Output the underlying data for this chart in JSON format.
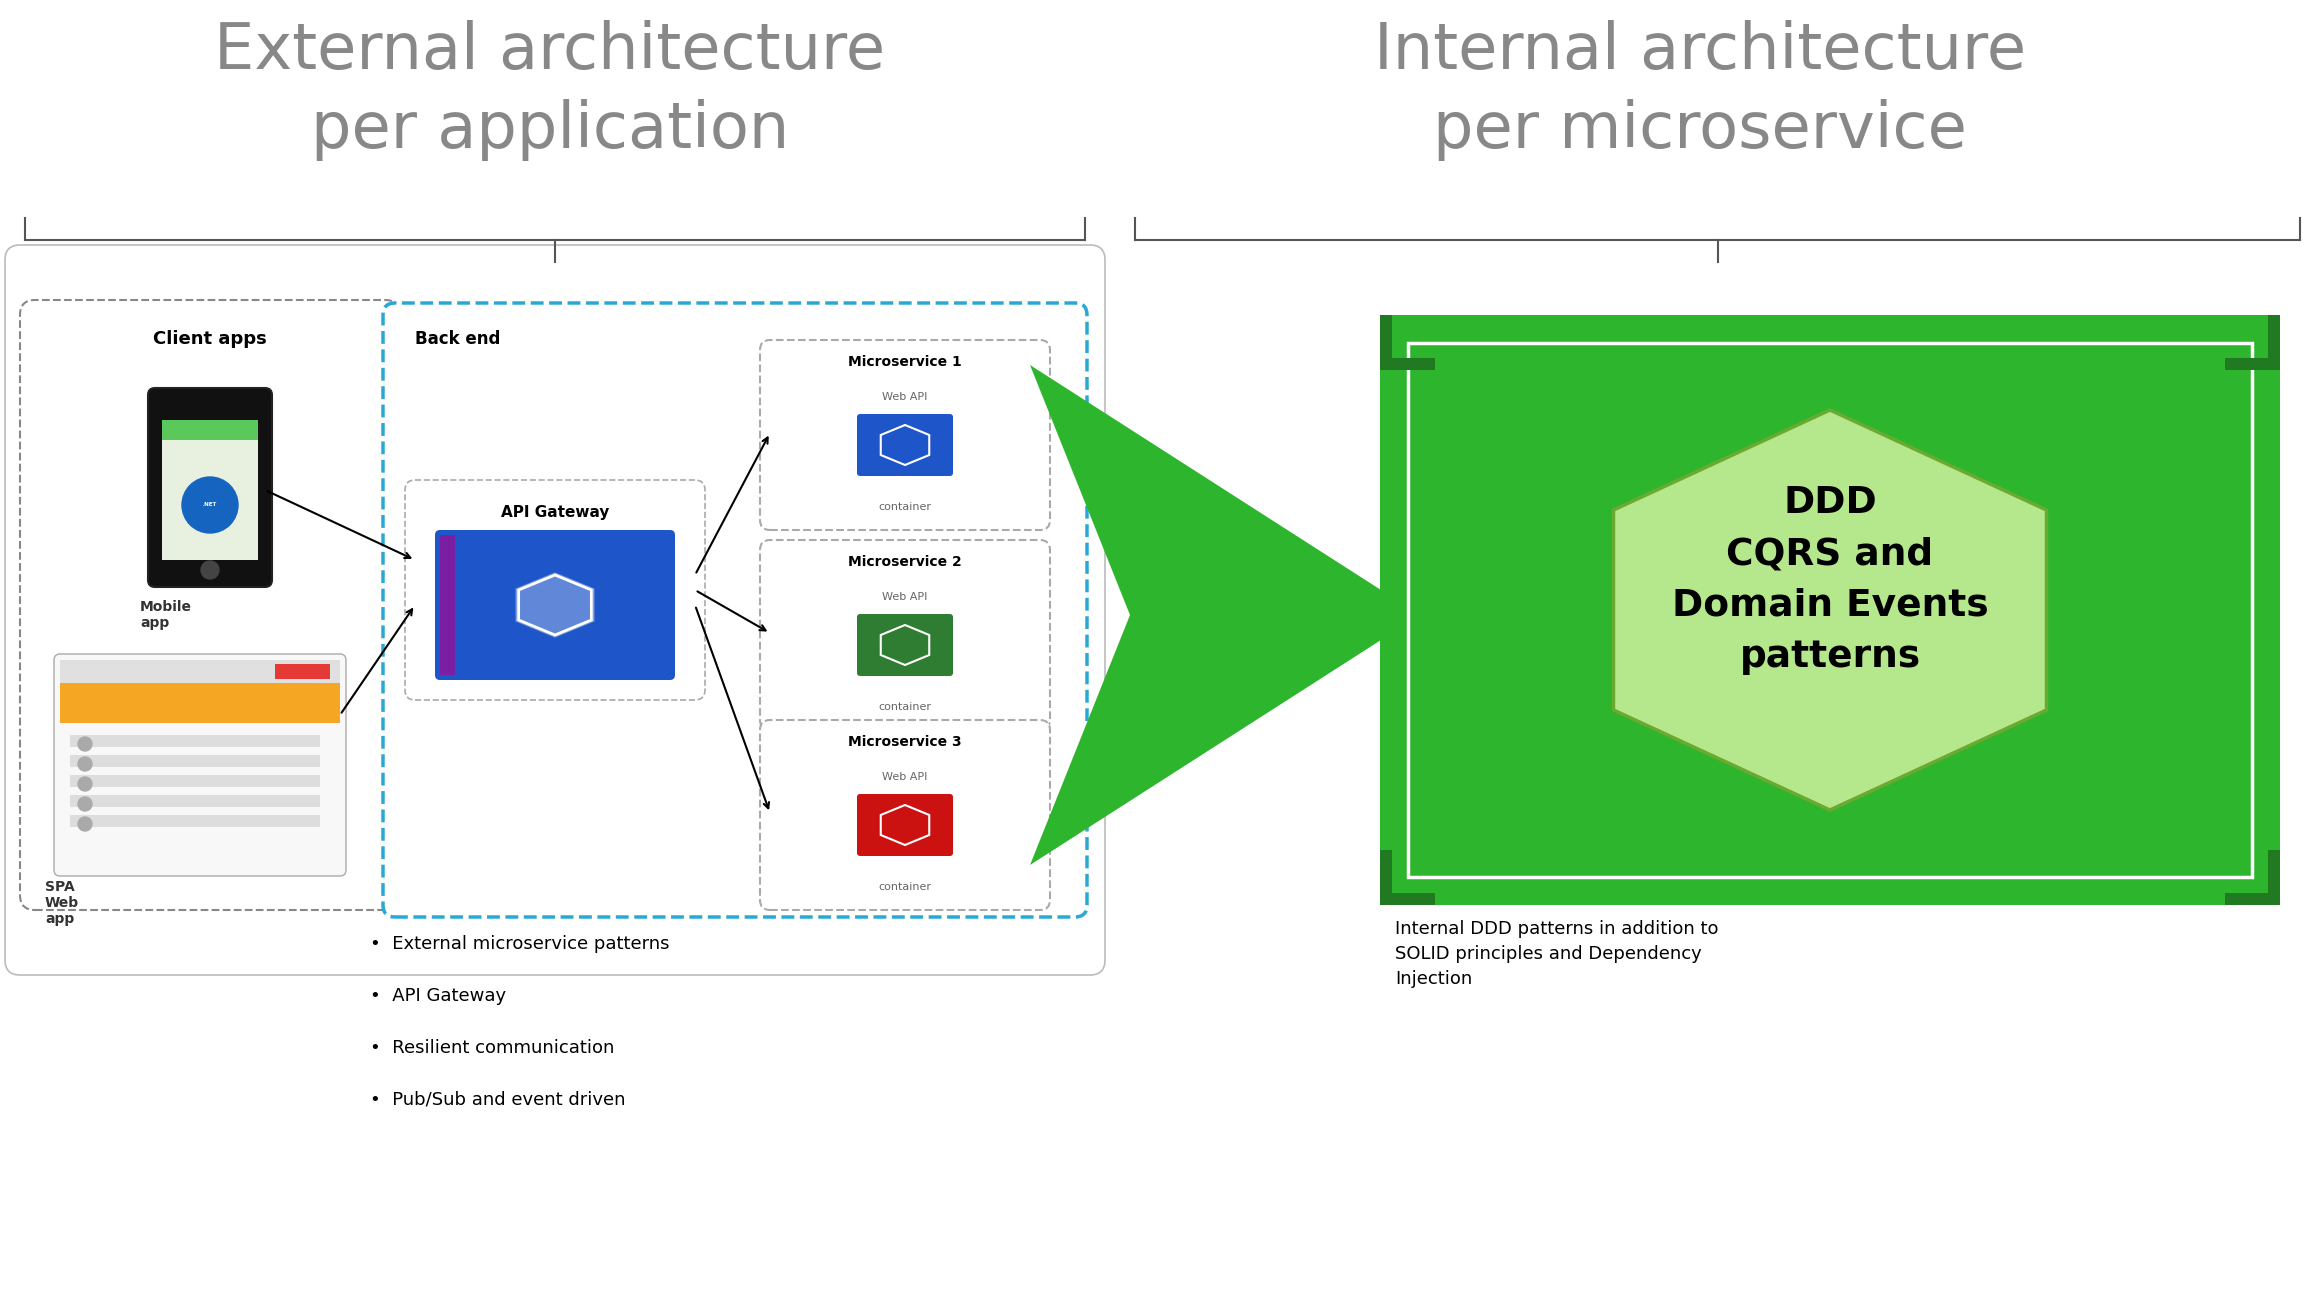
{
  "title_left": "External architecture\nper application",
  "title_right": "Internal architecture\nper microservice",
  "title_color": "#888888",
  "title_fontsize": 46,
  "bg_color": "#ffffff",
  "left_bullet_items": [
    "External microservice patterns",
    "API Gateway",
    "Resilient communication",
    "Pub/Sub and event driven"
  ],
  "right_text": "Internal DDD patterns in addition to\nSOLID principles and Dependency\nInjection",
  "ddd_text": "DDD\nCQRS and\nDomain Events\npatterns",
  "backend_label": "Back end",
  "client_label": "Client apps",
  "mobile_label": "Mobile\napp",
  "spa_label": "SPA\nWeb\napp",
  "gateway_label": "API Gateway",
  "ms1_label": "Microservice 1",
  "ms2_label": "Microservice 2",
  "ms3_label": "Microservice 3",
  "webapi_label": "Web API",
  "container_label": "container",
  "green_dark": "#217a21",
  "green_mid": "#2db52d",
  "green_light": "#b5e88c",
  "dashed_blue": "#29a8d4",
  "blue_icon": "#1e55c8",
  "purple_border": "#7b1fa2",
  "red_icon": "#cc1111",
  "green_icon": "#2e7d32",
  "text_dark": "#333333",
  "bracket_color": "#555555"
}
